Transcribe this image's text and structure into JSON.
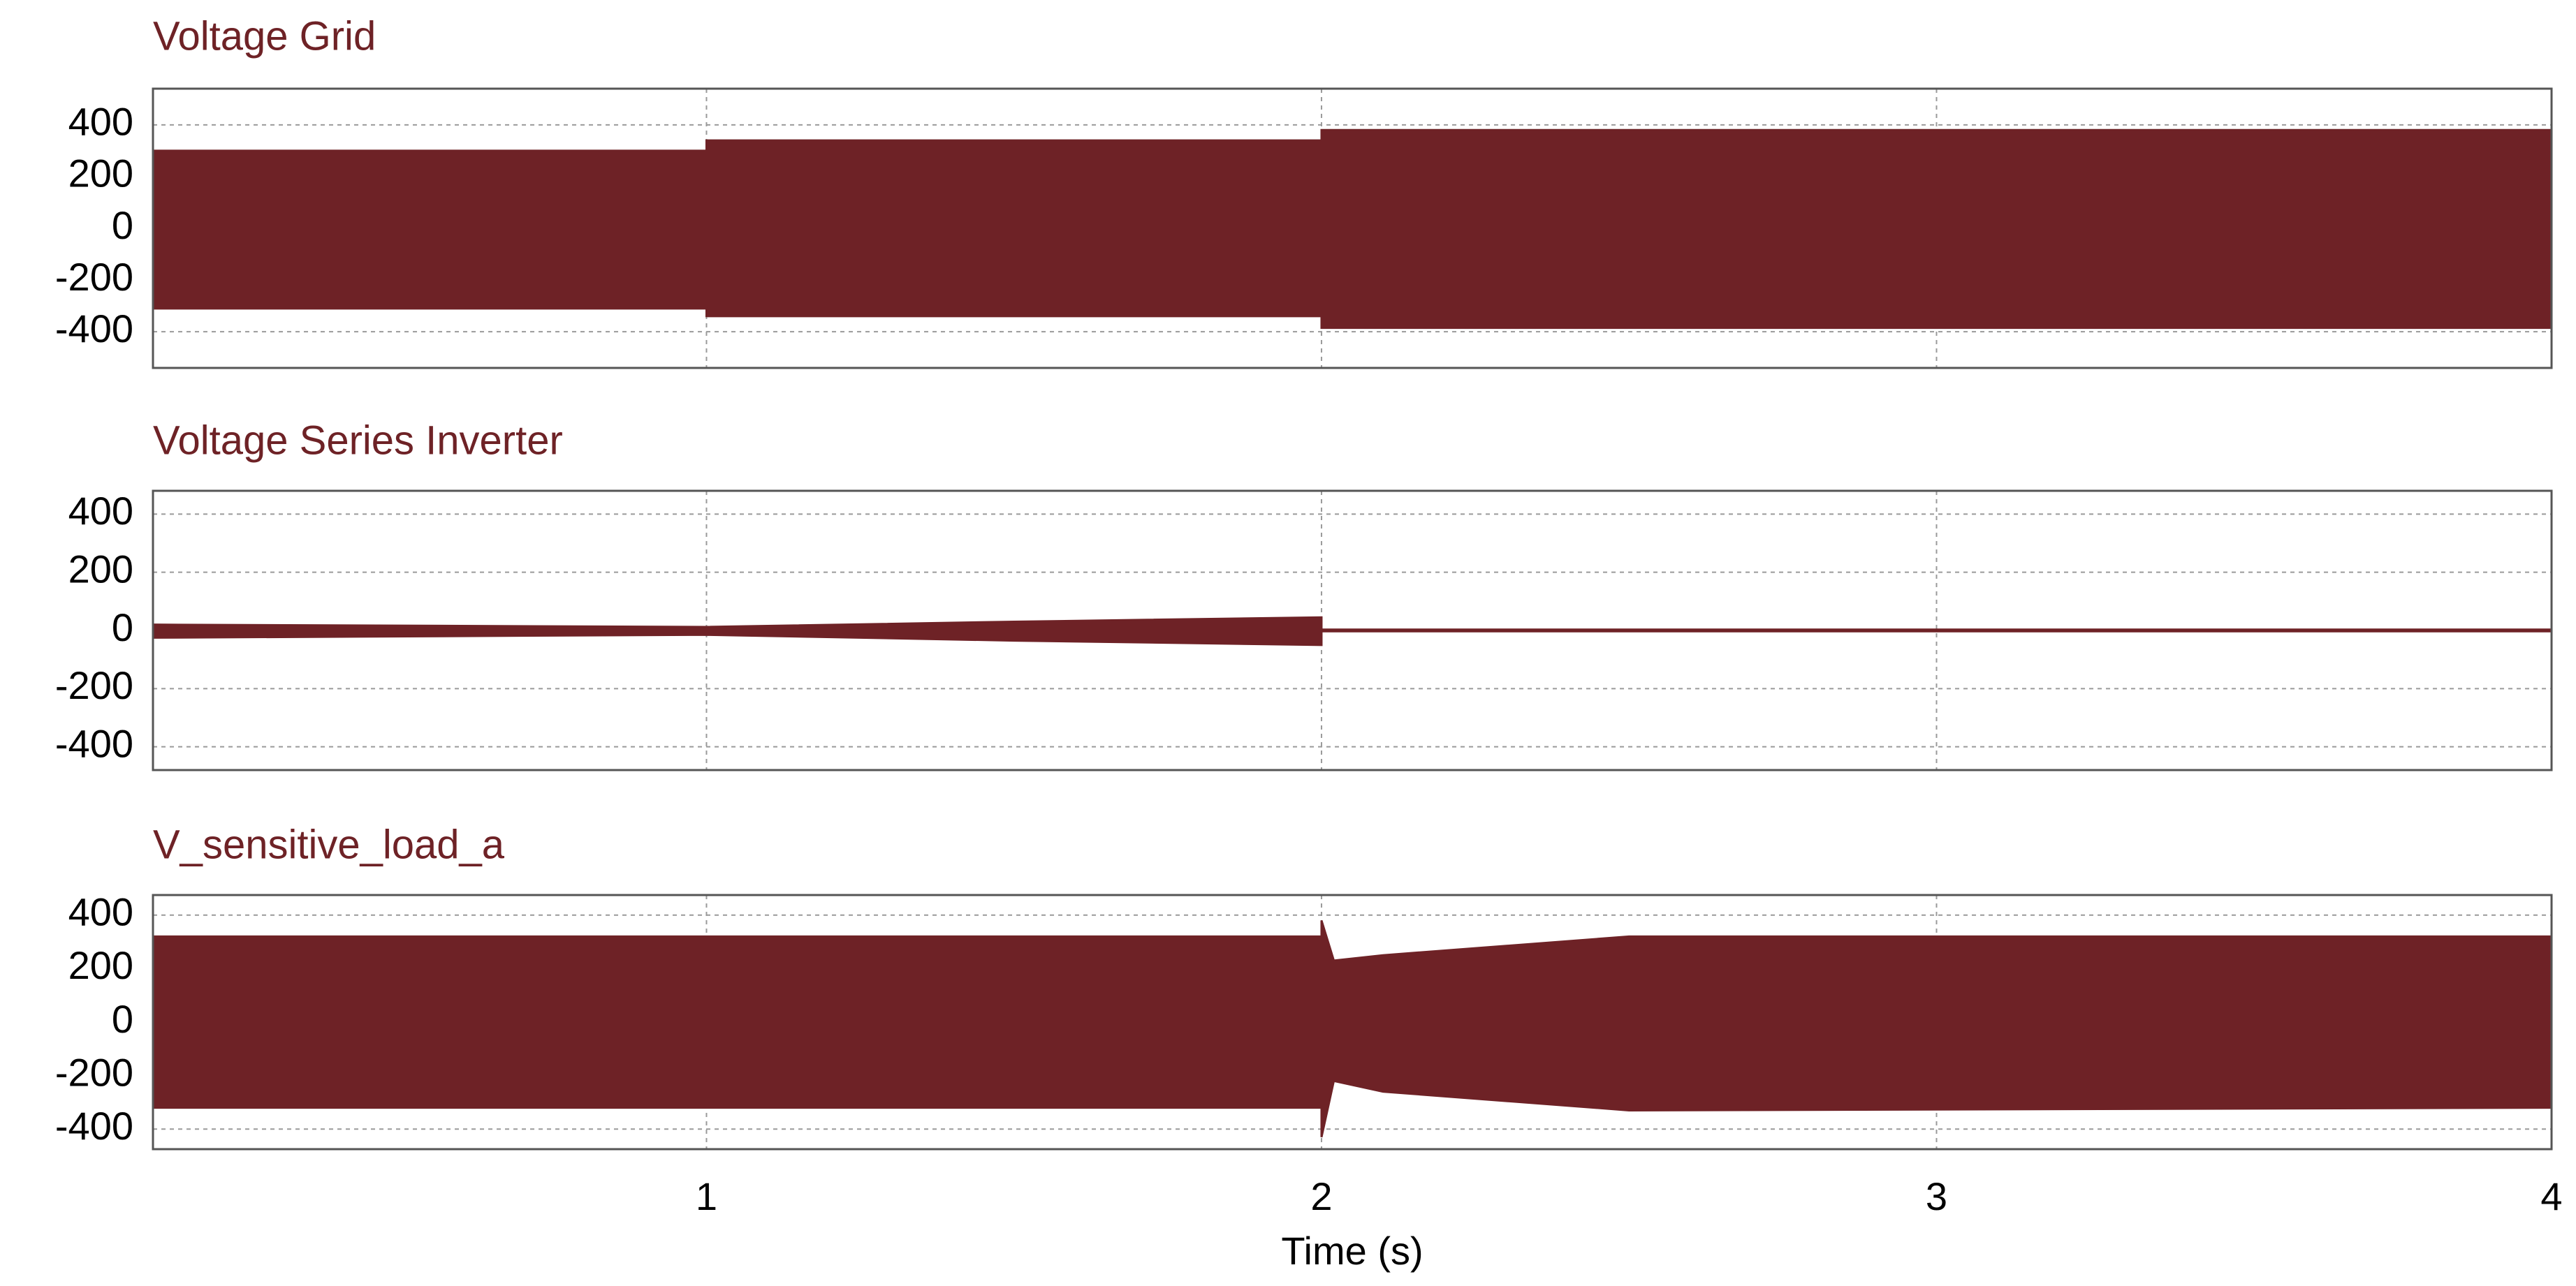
{
  "chart_data": [
    {
      "type": "envelope",
      "title": "Voltage Grid",
      "color": "#6e2226",
      "x": [
        0.1,
        1,
        1,
        2,
        2,
        4
      ],
      "upper": [
        300,
        300,
        340,
        340,
        380,
        380
      ],
      "lower": [
        -310,
        -310,
        -340,
        -340,
        -385,
        -385
      ],
      "xlim": [
        0.1,
        4
      ],
      "xticks": [
        1,
        2,
        3,
        4
      ],
      "ylim": [
        -540,
        540
      ],
      "yticks": [
        400,
        200,
        0,
        -200,
        -400
      ],
      "grid": true
    },
    {
      "type": "envelope",
      "title": "Voltage Series Inverter",
      "color": "#6e2226",
      "x": [
        0.1,
        1,
        1.5,
        2,
        2,
        4
      ],
      "upper": [
        20,
        12,
        30,
        45,
        3,
        3
      ],
      "lower": [
        -25,
        -15,
        -35,
        -50,
        -3,
        -3
      ],
      "xlim": [
        0.1,
        4
      ],
      "xticks": [
        1,
        2,
        3,
        4
      ],
      "ylim": [
        -480,
        480
      ],
      "yticks": [
        400,
        200,
        0,
        -200,
        -400
      ],
      "grid": true
    },
    {
      "type": "envelope",
      "title": "V_sensitive_load_a",
      "color": "#6e2226",
      "x": [
        0.1,
        2,
        2,
        2.02,
        2.1,
        2.5,
        4
      ],
      "upper": [
        320,
        320,
        380,
        230,
        250,
        320,
        320
      ],
      "lower": [
        -320,
        -320,
        -430,
        -220,
        -260,
        -330,
        -320
      ],
      "xlim": [
        0.1,
        4
      ],
      "xticks": [
        1,
        2,
        3,
        4
      ],
      "xlabel": "Time (s)",
      "ylim": [
        -475,
        475
      ],
      "yticks": [
        400,
        200,
        0,
        -200,
        -400
      ],
      "grid": true
    }
  ]
}
